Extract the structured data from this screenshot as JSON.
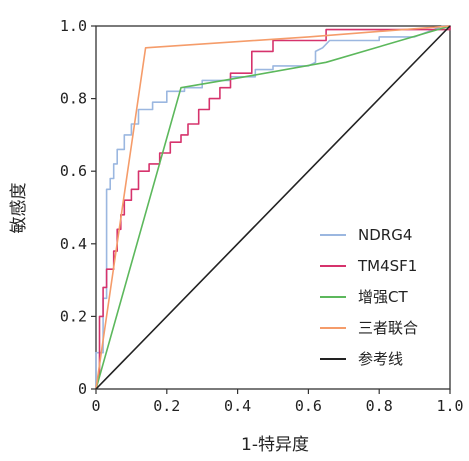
{
  "chart_data": {
    "type": "line",
    "title": "",
    "xlabel": "1-特异度",
    "ylabel": "敏感度",
    "xlim": [
      0,
      1
    ],
    "ylim": [
      0,
      1
    ],
    "x_ticks": [
      "0",
      "0.2",
      "0.4",
      "0.6",
      "0.8",
      "1.0"
    ],
    "y_ticks": [
      "0",
      "0.2",
      "0.4",
      "0.6",
      "0.8",
      "1.0"
    ],
    "grid": false,
    "legend_position": "bottom-right",
    "series": [
      {
        "name": "NDRG4",
        "color": "#9bb7e0",
        "points": [
          [
            0,
            0
          ],
          [
            0,
            0.1
          ],
          [
            0.02,
            0.1
          ],
          [
            0.02,
            0.25
          ],
          [
            0.03,
            0.25
          ],
          [
            0.03,
            0.55
          ],
          [
            0.04,
            0.55
          ],
          [
            0.04,
            0.58
          ],
          [
            0.05,
            0.58
          ],
          [
            0.05,
            0.62
          ],
          [
            0.06,
            0.62
          ],
          [
            0.06,
            0.66
          ],
          [
            0.08,
            0.66
          ],
          [
            0.08,
            0.7
          ],
          [
            0.1,
            0.7
          ],
          [
            0.1,
            0.73
          ],
          [
            0.12,
            0.73
          ],
          [
            0.12,
            0.77
          ],
          [
            0.16,
            0.77
          ],
          [
            0.16,
            0.79
          ],
          [
            0.2,
            0.79
          ],
          [
            0.2,
            0.82
          ],
          [
            0.25,
            0.82
          ],
          [
            0.25,
            0.83
          ],
          [
            0.3,
            0.83
          ],
          [
            0.3,
            0.85
          ],
          [
            0.38,
            0.85
          ],
          [
            0.38,
            0.86
          ],
          [
            0.45,
            0.86
          ],
          [
            0.45,
            0.88
          ],
          [
            0.5,
            0.88
          ],
          [
            0.5,
            0.89
          ],
          [
            0.6,
            0.89
          ],
          [
            0.62,
            0.9
          ],
          [
            0.62,
            0.93
          ],
          [
            0.64,
            0.94
          ],
          [
            0.66,
            0.96
          ],
          [
            0.8,
            0.96
          ],
          [
            0.8,
            0.97
          ],
          [
            0.9,
            0.97
          ],
          [
            0.98,
            1.0
          ],
          [
            1.0,
            1.0
          ]
        ]
      },
      {
        "name": "TM4SF1",
        "color": "#d6336c",
        "points": [
          [
            0,
            0
          ],
          [
            0.01,
            0.05
          ],
          [
            0.01,
            0.2
          ],
          [
            0.02,
            0.2
          ],
          [
            0.02,
            0.28
          ],
          [
            0.03,
            0.28
          ],
          [
            0.03,
            0.33
          ],
          [
            0.05,
            0.33
          ],
          [
            0.05,
            0.38
          ],
          [
            0.06,
            0.38
          ],
          [
            0.06,
            0.44
          ],
          [
            0.07,
            0.44
          ],
          [
            0.07,
            0.48
          ],
          [
            0.08,
            0.48
          ],
          [
            0.08,
            0.52
          ],
          [
            0.1,
            0.52
          ],
          [
            0.1,
            0.55
          ],
          [
            0.12,
            0.55
          ],
          [
            0.12,
            0.6
          ],
          [
            0.15,
            0.6
          ],
          [
            0.15,
            0.62
          ],
          [
            0.18,
            0.62
          ],
          [
            0.18,
            0.65
          ],
          [
            0.21,
            0.65
          ],
          [
            0.21,
            0.68
          ],
          [
            0.24,
            0.68
          ],
          [
            0.24,
            0.7
          ],
          [
            0.26,
            0.7
          ],
          [
            0.26,
            0.73
          ],
          [
            0.29,
            0.73
          ],
          [
            0.29,
            0.77
          ],
          [
            0.32,
            0.77
          ],
          [
            0.32,
            0.8
          ],
          [
            0.35,
            0.8
          ],
          [
            0.35,
            0.83
          ],
          [
            0.38,
            0.83
          ],
          [
            0.38,
            0.87
          ],
          [
            0.44,
            0.87
          ],
          [
            0.44,
            0.93
          ],
          [
            0.5,
            0.93
          ],
          [
            0.5,
            0.96
          ],
          [
            0.65,
            0.96
          ],
          [
            0.65,
            0.99
          ],
          [
            1.0,
            0.99
          ],
          [
            1.0,
            1.0
          ]
        ]
      },
      {
        "name": "增强CT",
        "color": "#5cb85c",
        "points": [
          [
            0,
            0
          ],
          [
            0.24,
            0.83
          ],
          [
            0.42,
            0.86
          ],
          [
            0.65,
            0.9
          ],
          [
            1.0,
            1.0
          ]
        ]
      },
      {
        "name": "三者联合",
        "color": "#f59c6a",
        "points": [
          [
            0,
            0
          ],
          [
            0.14,
            0.94
          ],
          [
            0.6,
            0.97
          ],
          [
            1.0,
            1.0
          ]
        ]
      },
      {
        "name": "参考线",
        "color": "#222222",
        "points": [
          [
            0,
            0
          ],
          [
            1,
            1
          ]
        ]
      }
    ]
  }
}
